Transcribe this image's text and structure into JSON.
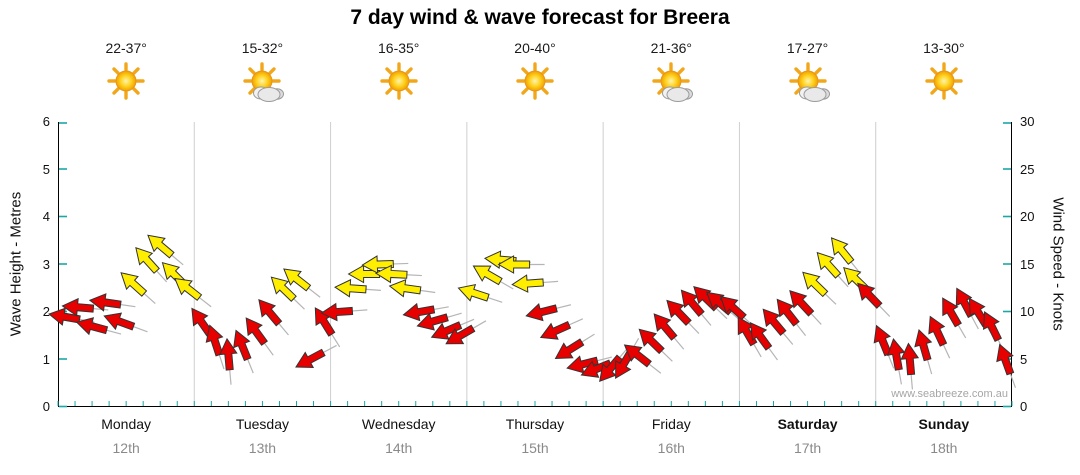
{
  "title": "7 day wind & wave forecast for Breera",
  "watermark": "www.seabreeze.com.au",
  "axes": {
    "left_label": "Wave Height - Metres",
    "right_label": "Wind Speed - Knots",
    "left_ticks": [
      0,
      1,
      2,
      3,
      4,
      5,
      6
    ],
    "right_ticks": [
      0,
      5,
      10,
      15,
      20,
      25,
      30
    ]
  },
  "colors": {
    "arrow_low": "#e60000",
    "arrow_high": "#ffee00",
    "arrow_outline": "#333333",
    "tick_teal": "#1aa7a7",
    "separator": "#cfcfcf",
    "axis_line": "#000000",
    "date_gray": "#8a8a8a"
  },
  "chart_data": {
    "type": "scatter",
    "subtype": "wind-direction-arrows",
    "y_left": {
      "label": "Wave Height - Metres",
      "range": [
        0,
        6
      ]
    },
    "y_right": {
      "label": "Wind Speed - Knots",
      "range": [
        0,
        30
      ]
    },
    "color_threshold_kn": 12,
    "dir_convention": "degrees clockwise from screen-right; arrow points toward that heading",
    "days": [
      {
        "name": "Monday",
        "date": "12th",
        "temp": "22-37°",
        "icon": "sun",
        "bold": false,
        "arrows": [
          {
            "kn": 9.5,
            "dir": 190
          },
          {
            "kn": 10.5,
            "dir": 185
          },
          {
            "kn": 8.5,
            "dir": 195
          },
          {
            "kn": 11,
            "dir": 188
          },
          {
            "kn": 9,
            "dir": 200
          },
          {
            "kn": 13,
            "dir": -138
          },
          {
            "kn": 15.5,
            "dir": -132
          },
          {
            "kn": 17,
            "dir": -140
          },
          {
            "kn": 14,
            "dir": -135
          },
          {
            "kn": 12.5,
            "dir": -142
          }
        ]
      },
      {
        "name": "Tuesday",
        "date": "13th",
        "temp": "15-32°",
        "icon": "sun-cloud",
        "bold": false,
        "arrows": [
          {
            "kn": 9,
            "dir": -125
          },
          {
            "kn": 7,
            "dir": -108
          },
          {
            "kn": 5.5,
            "dir": -95
          },
          {
            "kn": 6.5,
            "dir": -112
          },
          {
            "kn": 8,
            "dir": -126
          },
          {
            "kn": 10,
            "dir": -130
          },
          {
            "kn": 12.5,
            "dir": -136
          },
          {
            "kn": 13.5,
            "dir": -142
          },
          {
            "kn": 5,
            "dir": 152
          },
          {
            "kn": 9,
            "dir": -122
          }
        ]
      },
      {
        "name": "Wednesday",
        "date": "14th",
        "temp": "16-35°",
        "icon": "sun",
        "bold": false,
        "arrows": [
          {
            "kn": 10,
            "dir": 176
          },
          {
            "kn": 12.5,
            "dir": 184
          },
          {
            "kn": 14,
            "dir": 180
          },
          {
            "kn": 15,
            "dir": 178
          },
          {
            "kn": 14,
            "dir": 183
          },
          {
            "kn": 12.5,
            "dir": 188
          },
          {
            "kn": 10,
            "dir": 170
          },
          {
            "kn": 9,
            "dir": 164
          },
          {
            "kn": 8,
            "dir": 157
          },
          {
            "kn": 7.5,
            "dir": 150
          }
        ]
      },
      {
        "name": "Thursday",
        "date": "15th",
        "temp": "20-40°",
        "icon": "sun",
        "bold": false,
        "arrows": [
          {
            "kn": 12,
            "dir": -162
          },
          {
            "kn": 14,
            "dir": -150
          },
          {
            "kn": 15.5,
            "dir": 185
          },
          {
            "kn": 15,
            "dir": 180
          },
          {
            "kn": 13,
            "dir": 176
          },
          {
            "kn": 10,
            "dir": 166
          },
          {
            "kn": 8,
            "dir": 156
          },
          {
            "kn": 6,
            "dir": 148
          },
          {
            "kn": 4.5,
            "dir": 166
          },
          {
            "kn": 4,
            "dir": 158
          }
        ]
      },
      {
        "name": "Friday",
        "date": "16th",
        "temp": "21-36°",
        "icon": "sun-cloud",
        "bold": false,
        "arrows": [
          {
            "kn": 4,
            "dir": 130
          },
          {
            "kn": 4.5,
            "dir": 120
          },
          {
            "kn": 5.5,
            "dir": -142
          },
          {
            "kn": 7,
            "dir": -136
          },
          {
            "kn": 8.5,
            "dir": -130
          },
          {
            "kn": 10,
            "dir": -134
          },
          {
            "kn": 11,
            "dir": -130
          },
          {
            "kn": 11.5,
            "dir": -136
          },
          {
            "kn": 11,
            "dir": -140
          },
          {
            "kn": 10.5,
            "dir": -138
          }
        ]
      },
      {
        "name": "Saturday",
        "date": "17th",
        "temp": "17-27°",
        "icon": "sun-cloud",
        "bold": true,
        "arrows": [
          {
            "kn": 8,
            "dir": -120
          },
          {
            "kn": 7.5,
            "dir": -126
          },
          {
            "kn": 9,
            "dir": -130
          },
          {
            "kn": 10,
            "dir": -128
          },
          {
            "kn": 11,
            "dir": -133
          },
          {
            "kn": 13,
            "dir": -136
          },
          {
            "kn": 15,
            "dir": -132
          },
          {
            "kn": 16.5,
            "dir": -129
          },
          {
            "kn": 13.5,
            "dir": -136
          },
          {
            "kn": 11.8,
            "dir": -134
          }
        ]
      },
      {
        "name": "Sunday",
        "date": "18th",
        "temp": "13-30°",
        "icon": "sun",
        "bold": true,
        "arrows": [
          {
            "kn": 7,
            "dir": -112
          },
          {
            "kn": 5.5,
            "dir": -100
          },
          {
            "kn": 5,
            "dir": -95
          },
          {
            "kn": 6.5,
            "dir": -106
          },
          {
            "kn": 8,
            "dir": -115
          },
          {
            "kn": 10,
            "dir": -120
          },
          {
            "kn": 11,
            "dir": -118
          },
          {
            "kn": 10,
            "dir": -122
          },
          {
            "kn": 8.5,
            "dir": -116
          },
          {
            "kn": 5,
            "dir": -110
          }
        ]
      }
    ]
  }
}
